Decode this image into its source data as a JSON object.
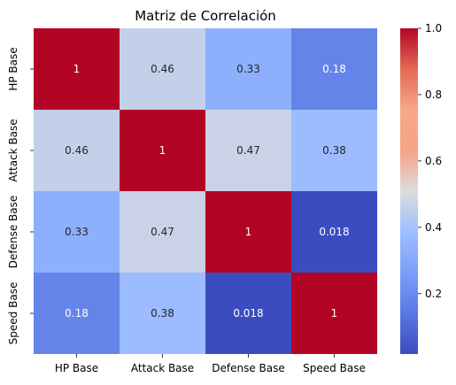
{
  "chart_data": {
    "type": "heatmap",
    "title": "Matriz de Correlación",
    "x_labels": [
      "HP Base",
      "Attack Base",
      "Defense Base",
      "Speed Base"
    ],
    "y_labels": [
      "HP Base",
      "Attack Base",
      "Defense Base",
      "Speed Base"
    ],
    "values": [
      [
        1,
        0.46,
        0.33,
        0.18
      ],
      [
        0.46,
        1,
        0.47,
        0.38
      ],
      [
        0.33,
        0.47,
        1,
        0.018
      ],
      [
        0.18,
        0.38,
        0.018,
        1
      ]
    ],
    "cell_labels": [
      [
        "1",
        "0.46",
        "0.33",
        "0.18"
      ],
      [
        "0.46",
        "1",
        "0.47",
        "0.38"
      ],
      [
        "0.33",
        "0.47",
        "1",
        "0.018"
      ],
      [
        "0.18",
        "0.38",
        "0.018",
        "1"
      ]
    ],
    "colormap": "coolwarm",
    "color_range": [
      0.018,
      1
    ],
    "colorbar_ticks": [
      0.2,
      0.4,
      0.6,
      0.8,
      1.0
    ],
    "colorbar_tick_labels": [
      "0.2",
      "0.4",
      "0.6",
      "0.8",
      "1.0"
    ],
    "colorbar_position": "right"
  }
}
